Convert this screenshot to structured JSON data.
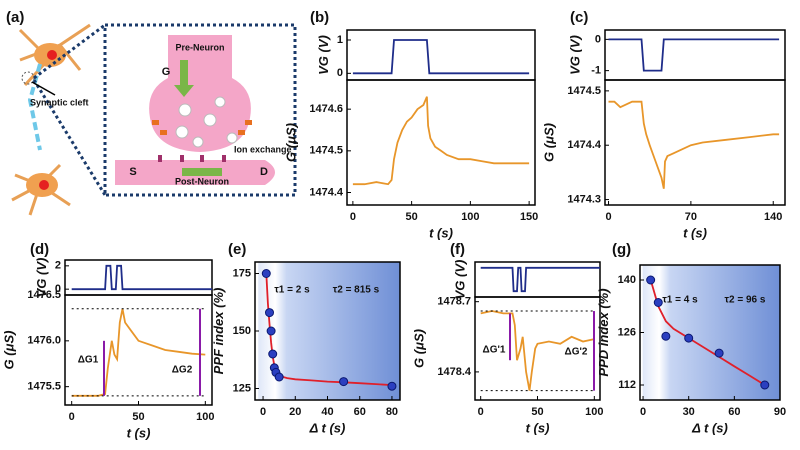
{
  "diagram": {
    "panel": "(a)",
    "synaptic_cleft": "Synaptic cleft",
    "pre_neuron": "Pre-Neuron",
    "g": "G",
    "ion_exchange": "Ion exchange",
    "s": "S",
    "d": "D",
    "post_neuron": "Post-Neuron"
  },
  "chart_data": [
    {
      "type": "line",
      "panel": "(b)",
      "ylabel": "VG (V)",
      "color": "#1f2d8a",
      "x": [
        0,
        33,
        35,
        63,
        65,
        150
      ],
      "values": [
        0,
        0,
        1,
        1,
        0,
        0
      ],
      "xlim": [
        -5,
        155
      ],
      "ylim": [
        -0.2,
        1.3
      ],
      "yticks": [
        0,
        1
      ]
    },
    {
      "type": "line",
      "ylabel": "G (μS)",
      "xlabel": "t (s)",
      "color": "#e8962a",
      "x": [
        0,
        10,
        20,
        30,
        33,
        35,
        38,
        42,
        46,
        50,
        55,
        60,
        63,
        64,
        66,
        70,
        75,
        80,
        90,
        100,
        110,
        120,
        130,
        140,
        150
      ],
      "values": [
        1474.42,
        1474.42,
        1474.425,
        1474.42,
        1474.43,
        1474.48,
        1474.52,
        1474.55,
        1474.57,
        1474.58,
        1474.6,
        1474.61,
        1474.63,
        1474.56,
        1474.53,
        1474.51,
        1474.5,
        1474.49,
        1474.48,
        1474.48,
        1474.475,
        1474.47,
        1474.47,
        1474.47,
        1474.47
      ],
      "xlim": [
        -5,
        155
      ],
      "ylim": [
        1474.37,
        1474.67
      ],
      "yticks": [
        1474.4,
        1474.5,
        1474.6
      ],
      "xticks": [
        0,
        50,
        100,
        150
      ]
    },
    {
      "type": "line",
      "panel": "(c)",
      "ylabel": "VG (V)",
      "color": "#1f2d8a",
      "x": [
        0,
        28,
        30,
        45,
        47,
        145
      ],
      "values": [
        0,
        0,
        -1,
        -1,
        0,
        0
      ],
      "xlim": [
        -3,
        150
      ],
      "ylim": [
        -1.3,
        0.3
      ],
      "yticks": [
        -1,
        0
      ]
    },
    {
      "type": "line",
      "ylabel": "G (μS)",
      "xlabel": "t (s)",
      "color": "#e8962a",
      "x": [
        0,
        5,
        10,
        20,
        28,
        30,
        32,
        35,
        40,
        45,
        47,
        48,
        50,
        55,
        60,
        70,
        80,
        100,
        120,
        140,
        145
      ],
      "values": [
        1474.48,
        1474.48,
        1474.47,
        1474.48,
        1474.48,
        1474.44,
        1474.42,
        1474.4,
        1474.37,
        1474.34,
        1474.32,
        1474.37,
        1474.38,
        1474.385,
        1474.39,
        1474.4,
        1474.405,
        1474.41,
        1474.415,
        1474.42,
        1474.42
      ],
      "xlim": [
        -3,
        150
      ],
      "ylim": [
        1474.29,
        1474.52
      ],
      "yticks": [
        1474.3,
        1474.4,
        1474.5
      ],
      "xticks": [
        0,
        70,
        140
      ]
    },
    {
      "type": "line",
      "panel": "(d)",
      "ylabel": "VG (V)",
      "color": "#1f2d8a",
      "x": [
        0,
        25,
        26,
        29,
        30,
        33,
        34,
        37,
        38,
        105
      ],
      "values": [
        0,
        0,
        2,
        2,
        0,
        0,
        2,
        2,
        0,
        0
      ],
      "xlim": [
        -5,
        105
      ],
      "ylim": [
        -0.5,
        2.5
      ],
      "yticks": [
        0,
        2
      ]
    },
    {
      "type": "line",
      "ylabel": "G (μS)",
      "xlabel": "t (s)",
      "color": "#e8962a",
      "x": [
        0,
        10,
        20,
        25,
        27,
        30,
        32,
        34,
        36,
        38,
        40,
        45,
        50,
        60,
        70,
        80,
        90,
        100
      ],
      "values": [
        1475.4,
        1475.4,
        1475.4,
        1475.42,
        1475.7,
        1476.0,
        1475.85,
        1475.8,
        1476.2,
        1476.35,
        1476.2,
        1476.1,
        1476.0,
        1475.95,
        1475.9,
        1475.88,
        1475.86,
        1475.85
      ],
      "xlim": [
        -5,
        105
      ],
      "ylim": [
        1475.3,
        1476.5
      ],
      "yticks": [
        1475.5,
        {
          "value": 1476,
          "label": "1476.0"
        },
        1476.5
      ],
      "xticks": [
        0,
        50,
        100
      ],
      "annotations": [
        "ΔG1",
        "ΔG2"
      ]
    },
    {
      "type": "scatter",
      "panel": "(e)",
      "ylabel": "PPF index (%)",
      "xlabel": "Δ t (s)",
      "color": "#2b3fc0",
      "fit_color": "#e0202a",
      "x": [
        2,
        4,
        5,
        6,
        7,
        8,
        10,
        50,
        80
      ],
      "values": [
        175,
        158,
        150,
        140,
        134,
        132,
        130,
        128,
        126
      ],
      "fit_x": [
        2,
        3,
        4,
        5,
        6,
        7,
        8,
        10,
        15,
        20,
        30,
        40,
        50,
        60,
        70,
        80
      ],
      "fit_values": [
        175,
        162,
        153,
        145,
        139,
        135,
        132.5,
        130.5,
        129.5,
        129,
        128.5,
        128,
        127.7,
        127.3,
        126.9,
        126.5
      ],
      "xlim": [
        -5,
        85
      ],
      "ylim": [
        120,
        180
      ],
      "yticks": [
        125,
        150,
        175
      ],
      "xticks": [
        0,
        20,
        40,
        60,
        80
      ],
      "annotations": [
        "τ1 = 2 s",
        "τ2 = 815 s"
      ]
    },
    {
      "type": "line",
      "panel": "(f)",
      "ylabel": "VG (V)",
      "color": "#1f2d8a",
      "x": [
        0,
        28,
        29,
        32,
        33,
        35,
        36,
        39,
        40,
        105
      ],
      "values": [
        0,
        0,
        -2,
        -2,
        0,
        0,
        -2,
        -2,
        0,
        0
      ],
      "xlim": [
        -5,
        105
      ],
      "ylim": [
        -2.5,
        0.5
      ],
      "yticks": []
    },
    {
      "type": "line",
      "ylabel": "G (μS)",
      "xlabel": "t (s)",
      "color": "#e8962a",
      "x": [
        0,
        10,
        20,
        28,
        30,
        32,
        35,
        37,
        40,
        43,
        45,
        48,
        50,
        60,
        70,
        80,
        90,
        100
      ],
      "values": [
        1478.65,
        1478.66,
        1478.65,
        1478.65,
        1478.6,
        1478.45,
        1478.5,
        1478.55,
        1478.4,
        1478.32,
        1478.4,
        1478.5,
        1478.52,
        1478.53,
        1478.52,
        1478.55,
        1478.53,
        1478.54
      ],
      "xlim": [
        -5,
        105
      ],
      "ylim": [
        1478.28,
        1478.72
      ],
      "yticks": [
        1478.4,
        1478.7
      ],
      "xticks": [
        0,
        50,
        100
      ],
      "annotations": [
        "ΔG'1",
        "ΔG'2"
      ]
    },
    {
      "type": "scatter",
      "panel": "(g)",
      "ylabel": "PPD index (%)",
      "xlabel": "Δ t (s)",
      "color": "#2b3fc0",
      "fit_color": "#e0202a",
      "x": [
        5,
        10,
        15,
        30,
        50,
        80
      ],
      "values": [
        140,
        134,
        125,
        124.5,
        120.5,
        112
      ],
      "fit_x": [
        5,
        10,
        15,
        20,
        30,
        40,
        50,
        60,
        70,
        80
      ],
      "fit_values": [
        140,
        133,
        129,
        127,
        124.5,
        122,
        119.5,
        117,
        114.5,
        112
      ],
      "xlim": [
        -2,
        90
      ],
      "ylim": [
        108,
        144
      ],
      "yticks": [
        112,
        126,
        140
      ],
      "xticks": [
        0,
        30,
        60,
        90
      ],
      "annotations": [
        "τ1 = 4 s",
        "τ2 = 96 s"
      ]
    }
  ]
}
